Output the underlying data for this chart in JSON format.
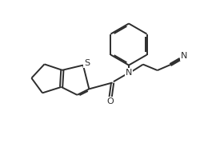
{
  "background_color": "#ffffff",
  "line_color": "#2d2d2d",
  "line_width": 1.4,
  "fig_width": 2.5,
  "fig_height": 1.89,
  "dpi": 100,
  "xlim": [
    0,
    10
  ],
  "ylim": [
    0,
    7.56
  ]
}
